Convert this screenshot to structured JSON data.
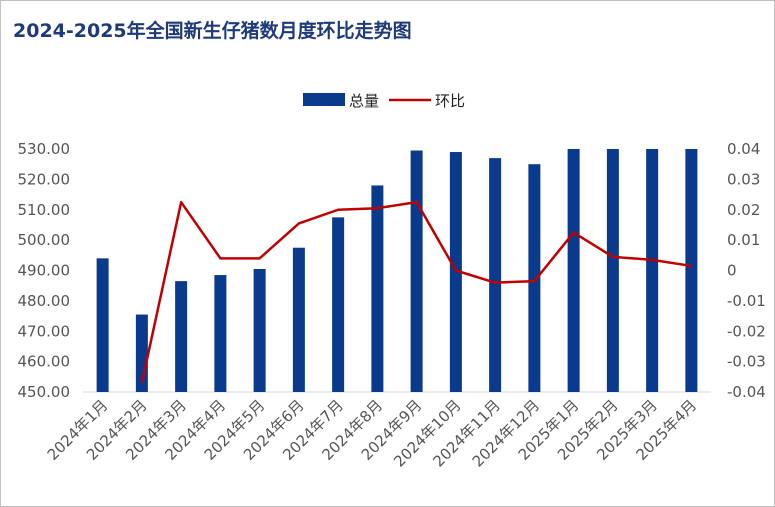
{
  "chart_data": {
    "type": "bar",
    "title": "2024-2025年全国新生仔猪数月度环比走势图",
    "categories": [
      "2024年1月",
      "2024年2月",
      "2024年3月",
      "2024年4月",
      "2024年5月",
      "2024年6月",
      "2024年7月",
      "2024年8月",
      "2024年9月",
      "2024年10月",
      "2024年11月",
      "2024年12月",
      "2025年1月",
      "2025年2月",
      "2025年3月",
      "2025年4月"
    ],
    "series": [
      {
        "name": "总量",
        "type": "bar",
        "axis": "left",
        "color": "#0a3a8c",
        "values": [
          494,
          475.5,
          486.5,
          488.5,
          490.5,
          497.5,
          507.5,
          518,
          529.5,
          529,
          527,
          525,
          530,
          530,
          530,
          530
        ]
      },
      {
        "name": "环比",
        "type": "line",
        "axis": "right",
        "color": "#c00000",
        "values": [
          null,
          -0.037,
          0.0225,
          0.004,
          0.004,
          0.0155,
          0.02,
          0.0205,
          0.0225,
          0,
          -0.004,
          -0.0035,
          0.0125,
          0.0045,
          0.0035,
          0.0015
        ]
      }
    ],
    "y_left": {
      "ylim": [
        450,
        530
      ],
      "ticks": [
        "450.00",
        "460.00",
        "470.00",
        "480.00",
        "490.00",
        "500.00",
        "510.00",
        "520.00",
        "530.00"
      ],
      "tick_values": [
        450,
        460,
        470,
        480,
        490,
        500,
        510,
        520,
        530
      ]
    },
    "y_right": {
      "ylim": [
        -0.04,
        0.04
      ],
      "ticks": [
        "-0.04",
        "-0.03",
        "-0.02",
        "-0.01",
        "0",
        "0.01",
        "0.02",
        "0.03",
        "0.04"
      ],
      "tick_values": [
        -0.04,
        -0.03,
        -0.02,
        -0.01,
        0,
        0.01,
        0.02,
        0.03,
        0.04
      ]
    },
    "legend_position": "top-center",
    "grid": false
  }
}
